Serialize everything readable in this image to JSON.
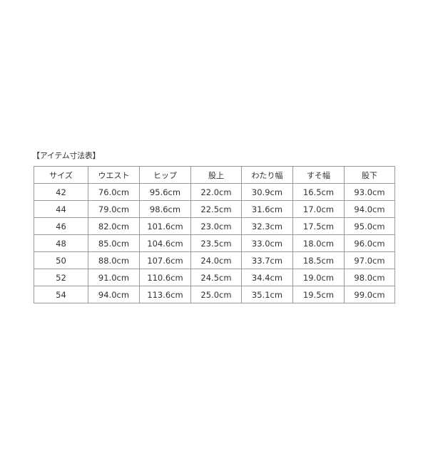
{
  "title": "【アイテム寸法表】",
  "headers": [
    "サイズ",
    "ウエスト",
    "ヒップ",
    "股上",
    "わたり幅",
    "すそ幅",
    "股下"
  ],
  "rows": [
    [
      "42",
      "76.0cm",
      "95.6cm",
      "22.0cm",
      "30.9cm",
      "16.5cm",
      "93.0cm"
    ],
    [
      "44",
      "79.0cm",
      "98.6cm",
      "22.5cm",
      "31.6cm",
      "17.0cm",
      "94.0cm"
    ],
    [
      "46",
      "82.0cm",
      "101.6cm",
      "23.0cm",
      "32.3cm",
      "17.5cm",
      "95.0cm"
    ],
    [
      "48",
      "85.0cm",
      "104.6cm",
      "23.5cm",
      "33.0cm",
      "18.0cm",
      "96.0cm"
    ],
    [
      "50",
      "88.0cm",
      "107.6cm",
      "24.0cm",
      "33.7cm",
      "18.5cm",
      "97.0cm"
    ],
    [
      "52",
      "91.0cm",
      "110.6cm",
      "24.5cm",
      "34.4cm",
      "19.0cm",
      "98.0cm"
    ],
    [
      "54",
      "94.0cm",
      "113.6cm",
      "25.0cm",
      "35.1cm",
      "19.5cm",
      "99.0cm"
    ]
  ]
}
